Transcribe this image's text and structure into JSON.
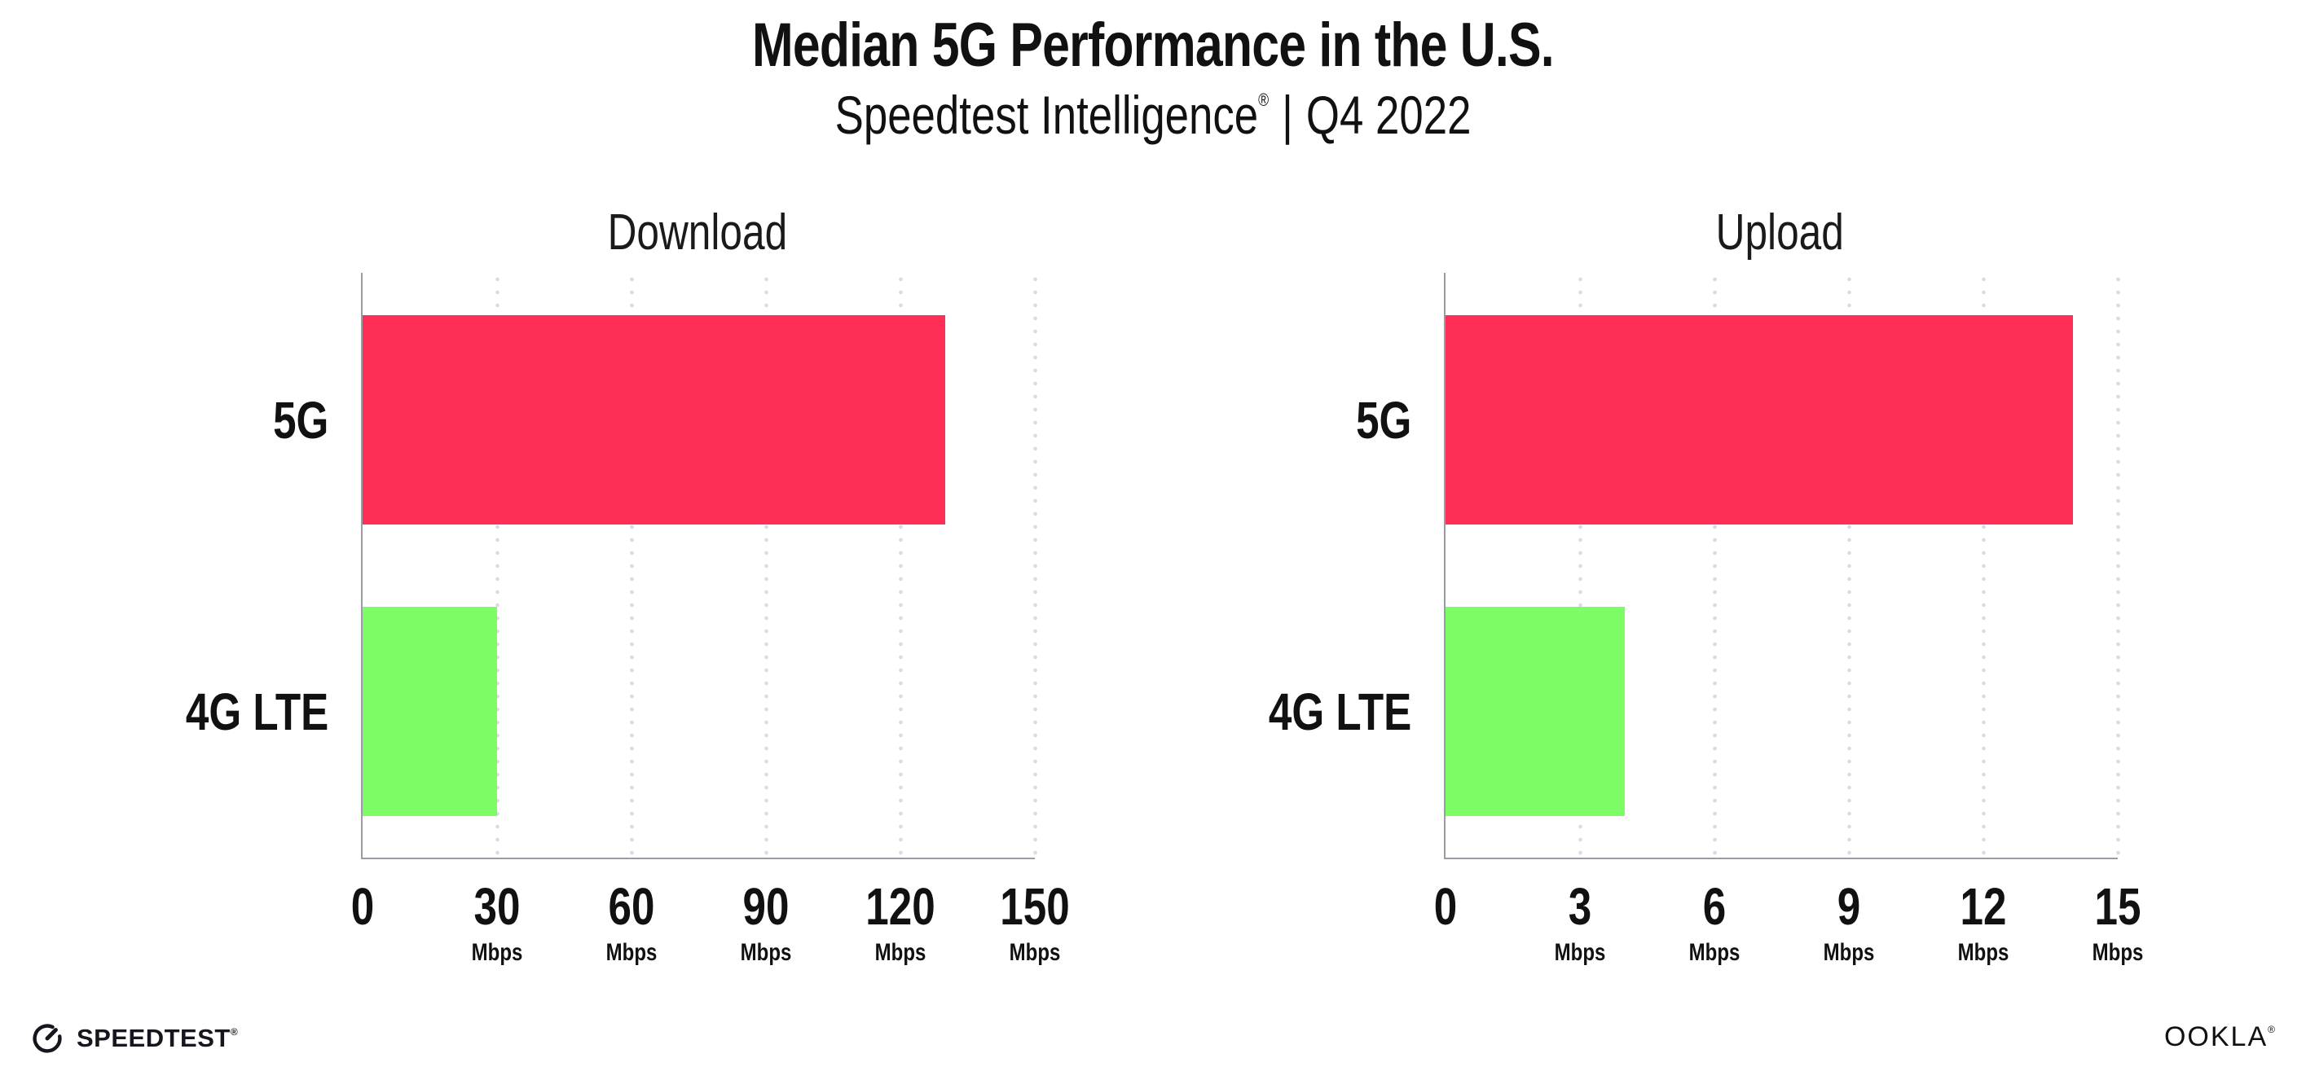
{
  "header": {
    "title": "Median 5G Performance in the U.S.",
    "subtitle_brand": "Speedtest Intelligence",
    "subtitle_reg": "®",
    "subtitle_separator": "|",
    "subtitle_period": "Q4 2022"
  },
  "chart_data": [
    {
      "type": "bar",
      "orientation": "horizontal",
      "title": "Download",
      "categories": [
        "5G",
        "4G LTE"
      ],
      "values": [
        130,
        30
      ],
      "unit": "Mbps",
      "xticks": [
        0,
        30,
        60,
        90,
        120,
        150
      ],
      "xlim": [
        0,
        150
      ],
      "grid": true,
      "legend": "none"
    },
    {
      "type": "bar",
      "orientation": "horizontal",
      "title": "Upload",
      "categories": [
        "5G",
        "4G LTE"
      ],
      "values": [
        14,
        4
      ],
      "unit": "Mbps",
      "xticks": [
        0,
        3,
        6,
        9,
        12,
        15
      ],
      "xlim": [
        0,
        15
      ],
      "grid": true,
      "legend": "none"
    }
  ],
  "colors": {
    "bar_5g": "#FF2E56",
    "bar_4g_lte": "#7DFC66",
    "gridline": "#D9DAE6",
    "axis": "#9B9BA3",
    "text": "#111111"
  },
  "footer": {
    "speedtest_label": "SPEEDTEST",
    "speedtest_reg": "®",
    "ookla_label": "OOKLA",
    "ookla_reg": "®"
  }
}
